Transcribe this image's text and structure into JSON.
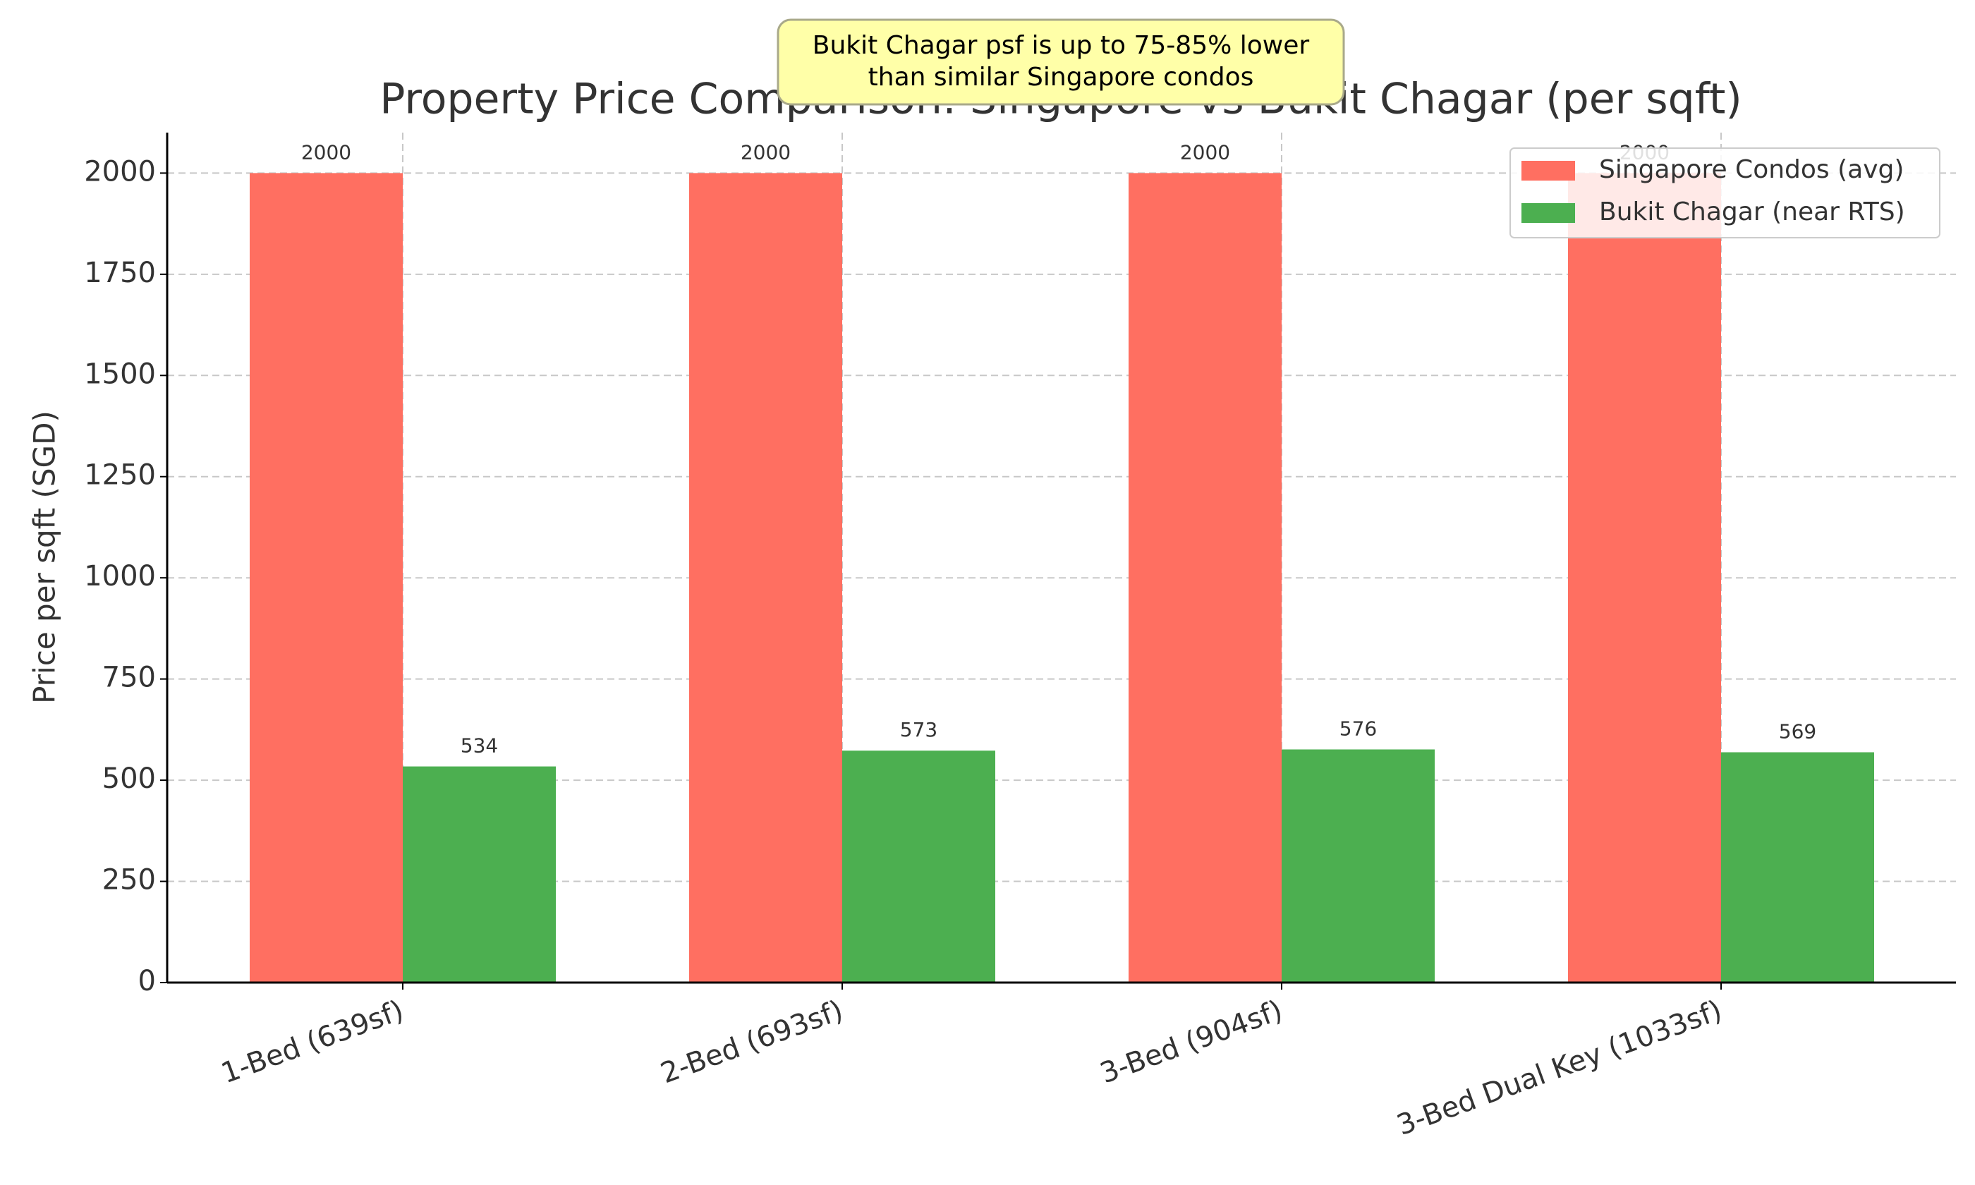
{
  "chart_data": {
    "type": "bar",
    "title": "Property Price Comparison: Singapore vs Bukit Chagar (per sqft)",
    "annotation": [
      "Bukit Chagar psf is up to 75-85% lower",
      "than similar Singapore condos"
    ],
    "y_label": "Price per sqft (SGD)",
    "categories": [
      "1-Bed (639sf)",
      "2-Bed (693sf)",
      "3-Bed (904sf)",
      "3-Bed Dual Key (1033sf)"
    ],
    "series": [
      {
        "name": "Singapore Condos (avg)",
        "color": "#ff6f61",
        "values": [
          2000,
          2000,
          2000,
          2000
        ]
      },
      {
        "name": "Bukit Chagar (near RTS)",
        "color": "#4caf50",
        "values": [
          534,
          573,
          576,
          569
        ]
      }
    ],
    "ylim": [
      0,
      2100
    ],
    "yticks": [
      0,
      250,
      500,
      750,
      1000,
      1250,
      1500,
      1750,
      2000
    ],
    "grid": true,
    "legend": "upper-right"
  }
}
